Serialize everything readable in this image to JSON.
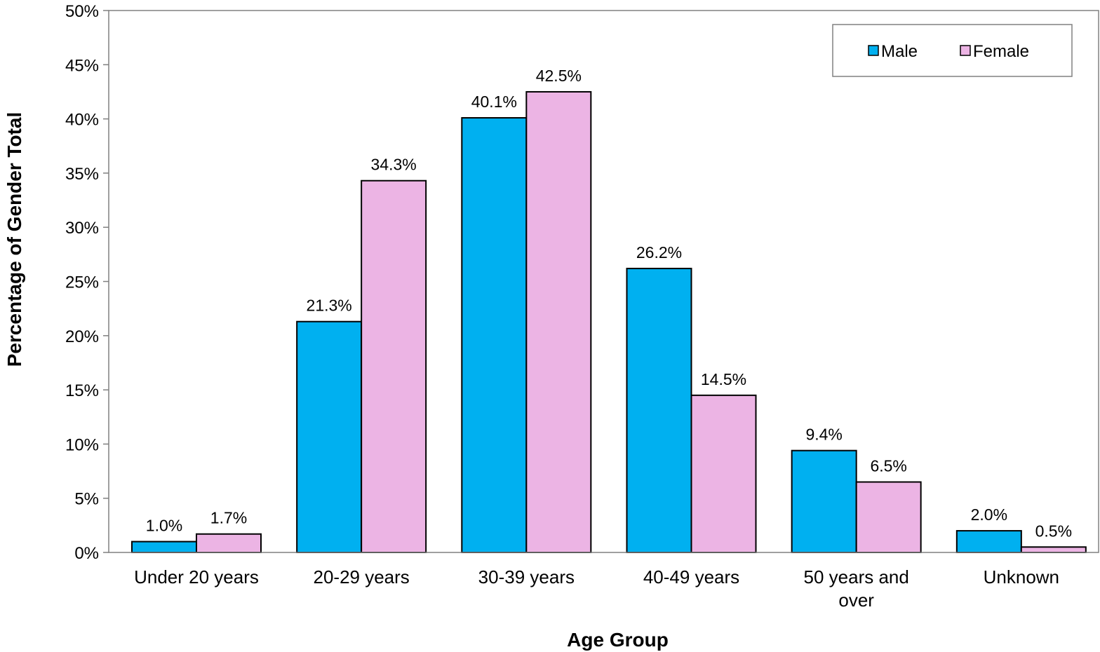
{
  "chart_data": {
    "type": "bar",
    "categories": [
      [
        "Under 20 years"
      ],
      [
        "20-29 years"
      ],
      [
        "30-39 years"
      ],
      [
        "40-49 years"
      ],
      [
        "50 years and",
        "over"
      ],
      [
        "Unknown"
      ]
    ],
    "series": [
      {
        "name": "Male",
        "color": "#00B0F0",
        "values": [
          1.0,
          21.3,
          40.1,
          26.2,
          9.4,
          2.0
        ],
        "labels": [
          "1.0%",
          "21.3%",
          "40.1%",
          "26.2%",
          "9.4%",
          "2.0%"
        ]
      },
      {
        "name": "Female",
        "color": "#ECB4E4",
        "values": [
          1.7,
          34.3,
          42.5,
          14.5,
          6.5,
          0.5
        ],
        "labels": [
          "1.7%",
          "34.3%",
          "42.5%",
          "14.5%",
          "6.5%",
          "0.5%"
        ]
      }
    ],
    "xlabel": "Age Group",
    "ylabel": "Percentage of Gender Total",
    "ylim": [
      0,
      50
    ],
    "yticks": [
      0,
      5,
      10,
      15,
      20,
      25,
      30,
      35,
      40,
      45,
      50
    ],
    "ytick_labels": [
      "0%",
      "5%",
      "10%",
      "15%",
      "20%",
      "25%",
      "30%",
      "35%",
      "40%",
      "45%",
      "50%"
    ],
    "grid": false,
    "legend_position": "top-right"
  }
}
